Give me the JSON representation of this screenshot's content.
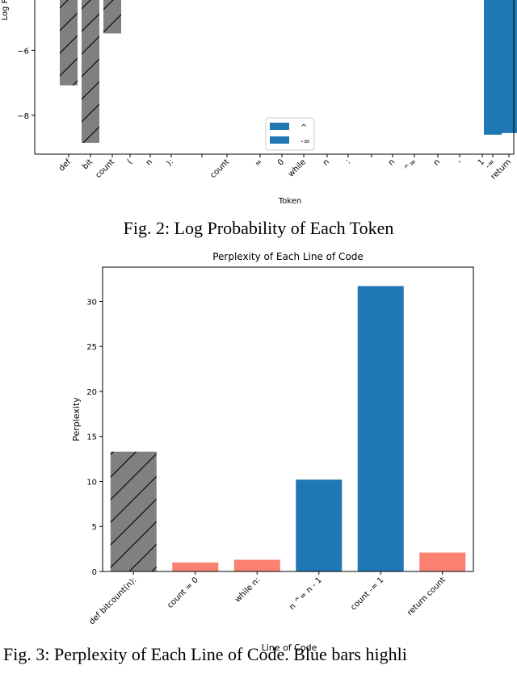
{
  "chart_data": [
    {
      "type": "bar",
      "title": "",
      "xlabel": "Token",
      "ylabel": "Log P",
      "ylim": [
        -9.2,
        -4.3
      ],
      "yticks": [
        -6,
        -8
      ],
      "ytick_labels": [
        "−6",
        "−8"
      ],
      "categories": [
        "def",
        "bit",
        "count",
        "(",
        "n",
        "):",
        "",
        "count",
        "=",
        "0",
        "while",
        "n",
        ":",
        "",
        "n",
        "^=",
        "n",
        "-",
        "1",
        "-=",
        "return"
      ],
      "values": [
        -7.08,
        -8.85,
        -5.48,
        null,
        null,
        null,
        null,
        null,
        null,
        null,
        null,
        null,
        null,
        null,
        null,
        null,
        null,
        null,
        null,
        -8.6,
        -8.55
      ],
      "bar_kind": [
        "hatched",
        "hatched",
        "hatched",
        "none",
        "none",
        "none",
        "none",
        "none",
        "none",
        "none",
        "none",
        "none",
        "none",
        "none",
        "none",
        "none",
        "none",
        "none",
        "none",
        "blue",
        "blue"
      ],
      "legend": {
        "entries": [
          "^",
          "-="
        ],
        "placement": "bottom-center"
      }
    },
    {
      "type": "bar",
      "title": "Perplexity of Each Line of Code",
      "xlabel": "Line of Code",
      "ylabel": "Perplexity",
      "ylim": [
        0,
        33.8
      ],
      "yticks": [
        0,
        5,
        10,
        15,
        20,
        25,
        30
      ],
      "categories": [
        "def bitcount(n):",
        "count = 0",
        "while n:",
        "n ^= n - 1",
        "count -= 1",
        "return count"
      ],
      "values": [
        13.3,
        1.0,
        1.3,
        10.2,
        31.7,
        2.1
      ],
      "bar_kind": [
        "hatched",
        "salmon",
        "salmon",
        "blue",
        "blue",
        "salmon"
      ]
    }
  ],
  "captions": {
    "fig2": "Fig. 2: Log Probability of Each Token",
    "fig3": "Fig. 3: Perplexity of Each Line of Code. Blue bars highli"
  },
  "colors": {
    "blue": "#1f77b4",
    "salmon": "#fa8072",
    "hatched": "#808080"
  }
}
